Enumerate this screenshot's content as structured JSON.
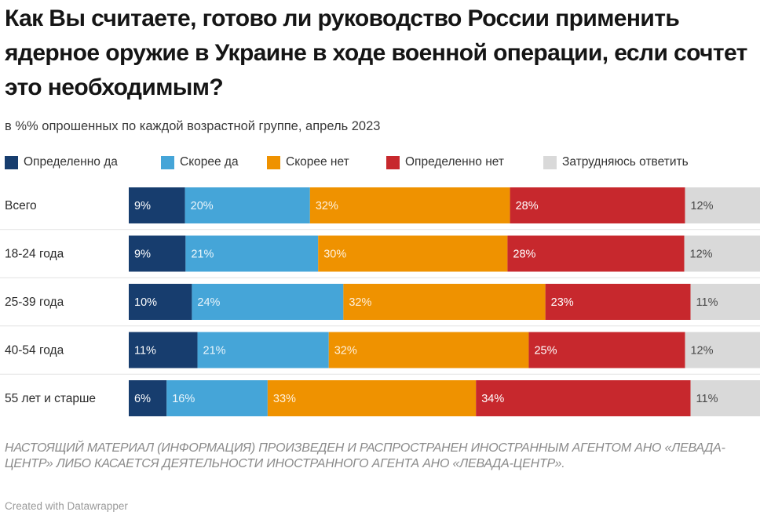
{
  "chart_data": {
    "type": "bar",
    "orientation": "horizontal",
    "stacked": true,
    "title": "Как Вы считаете, готово ли руководство России применить ядерное оружие в Украине в ходе военной операции, если сочтет это необходимым?",
    "subtitle": "в %% опрошенных по каждой возрастной группе, апрель 2023",
    "categories": [
      "Всего",
      "18-24 года",
      "25-39 года",
      "40-54 года",
      "55 лет и старше"
    ],
    "series": [
      {
        "name": "Определенно да",
        "color": "#173d6e",
        "values": [
          9,
          9,
          10,
          11,
          6
        ],
        "labels": [
          "9%",
          "9%",
          "10%",
          "11%",
          "6%"
        ]
      },
      {
        "name": "Скорее да",
        "color": "#45a5d8",
        "values": [
          20,
          21,
          24,
          21,
          16
        ],
        "labels": [
          "20%",
          "21%",
          "24%",
          "21%",
          "16%"
        ]
      },
      {
        "name": "Скорее нет",
        "color": "#ef9200",
        "values": [
          32,
          30,
          32,
          32,
          33
        ],
        "labels": [
          "32%",
          "30%",
          "32%",
          "32%",
          "33%"
        ]
      },
      {
        "name": "Определенно нет",
        "color": "#c7282d",
        "values": [
          28,
          28,
          23,
          25,
          34
        ],
        "labels": [
          "28%",
          "28%",
          "23%",
          "25%",
          "34%"
        ]
      },
      {
        "name": "Затрудняюсь ответить",
        "color": "#d9d9d9",
        "values": [
          12,
          12,
          11,
          12,
          11
        ],
        "labels": [
          "12%",
          "12%",
          "11%",
          "12%",
          "11%"
        ]
      }
    ]
  },
  "footer": {
    "note": "НАСТОЯЩИЙ МАТЕРИАЛ (ИНФОРМАЦИЯ) ПРОИЗВЕДЕН И РАСПРОСТРАНЕН ИНОСТРАННЫМ АГЕНТОМ АНО «ЛЕВАДА-ЦЕНТР» ЛИБО КАСАЕТСЯ ДЕЯТЕЛЬНОСТИ ИНОСТРАННОГО АГЕНТА АНО «ЛЕВАДА-ЦЕНТР».",
    "credit": "Created with Datawrapper"
  }
}
